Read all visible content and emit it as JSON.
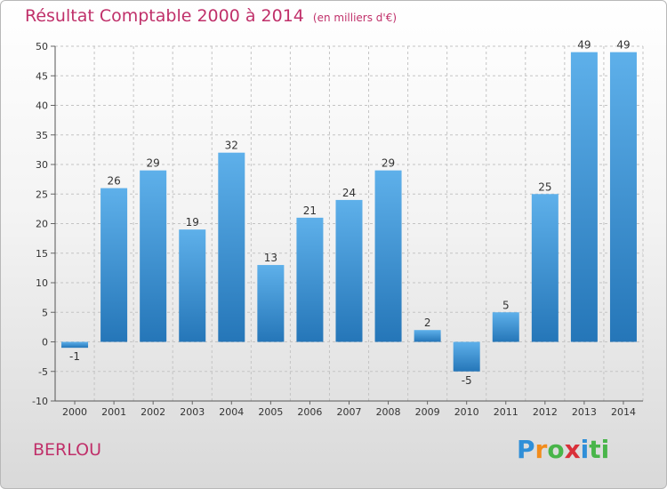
{
  "header": {
    "title": "Résultat Comptable 2000 à 2014",
    "subtitle": "(en milliers d'€)"
  },
  "footer": {
    "place": "BERLOU",
    "logo_letters": [
      "P",
      "r",
      "o",
      "x",
      "i",
      "ti"
    ]
  },
  "colors": {
    "title": "#c0306a",
    "bar_light": "#5eb0ea",
    "bar_dark": "#2576b8"
  },
  "chart_data": {
    "type": "bar",
    "title": "Résultat Comptable 2000 à 2014",
    "subtitle": "(en milliers d'€)",
    "categories": [
      "2000",
      "2001",
      "2002",
      "2003",
      "2004",
      "2005",
      "2006",
      "2007",
      "2008",
      "2009",
      "2010",
      "2011",
      "2012",
      "2013",
      "2014"
    ],
    "values": [
      -1,
      26,
      29,
      19,
      32,
      13,
      21,
      24,
      29,
      2,
      -5,
      5,
      25,
      49,
      49
    ],
    "ylim": [
      -10,
      50
    ],
    "yticks": [
      -10,
      -5,
      0,
      5,
      10,
      15,
      20,
      25,
      30,
      35,
      40,
      45,
      50
    ],
    "grid": true,
    "legend": "none"
  }
}
